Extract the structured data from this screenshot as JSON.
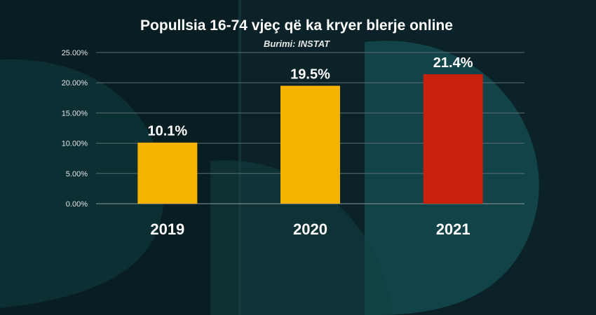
{
  "chart_data": {
    "type": "bar",
    "title": "Popullsia 16-74 vjeç që ka kryer blerje online",
    "subtitle": "Burimi: INSTAT",
    "categories": [
      "2019",
      "2020",
      "2021"
    ],
    "values": [
      10.1,
      19.5,
      21.4
    ],
    "data_labels": [
      "10.1%",
      "19.5%",
      "21.4%"
    ],
    "bar_colors": [
      "#f5b300",
      "#f5b300",
      "#c8220f"
    ],
    "ylim": [
      0,
      25
    ],
    "y_ticks": [
      0,
      5,
      10,
      15,
      20,
      25
    ],
    "y_tick_labels": [
      "0.00%",
      "5.00%",
      "10.00%",
      "15.00%",
      "20.00%",
      "25.00%"
    ],
    "grid": true,
    "legend": "none",
    "xlabel": "",
    "ylabel": ""
  }
}
